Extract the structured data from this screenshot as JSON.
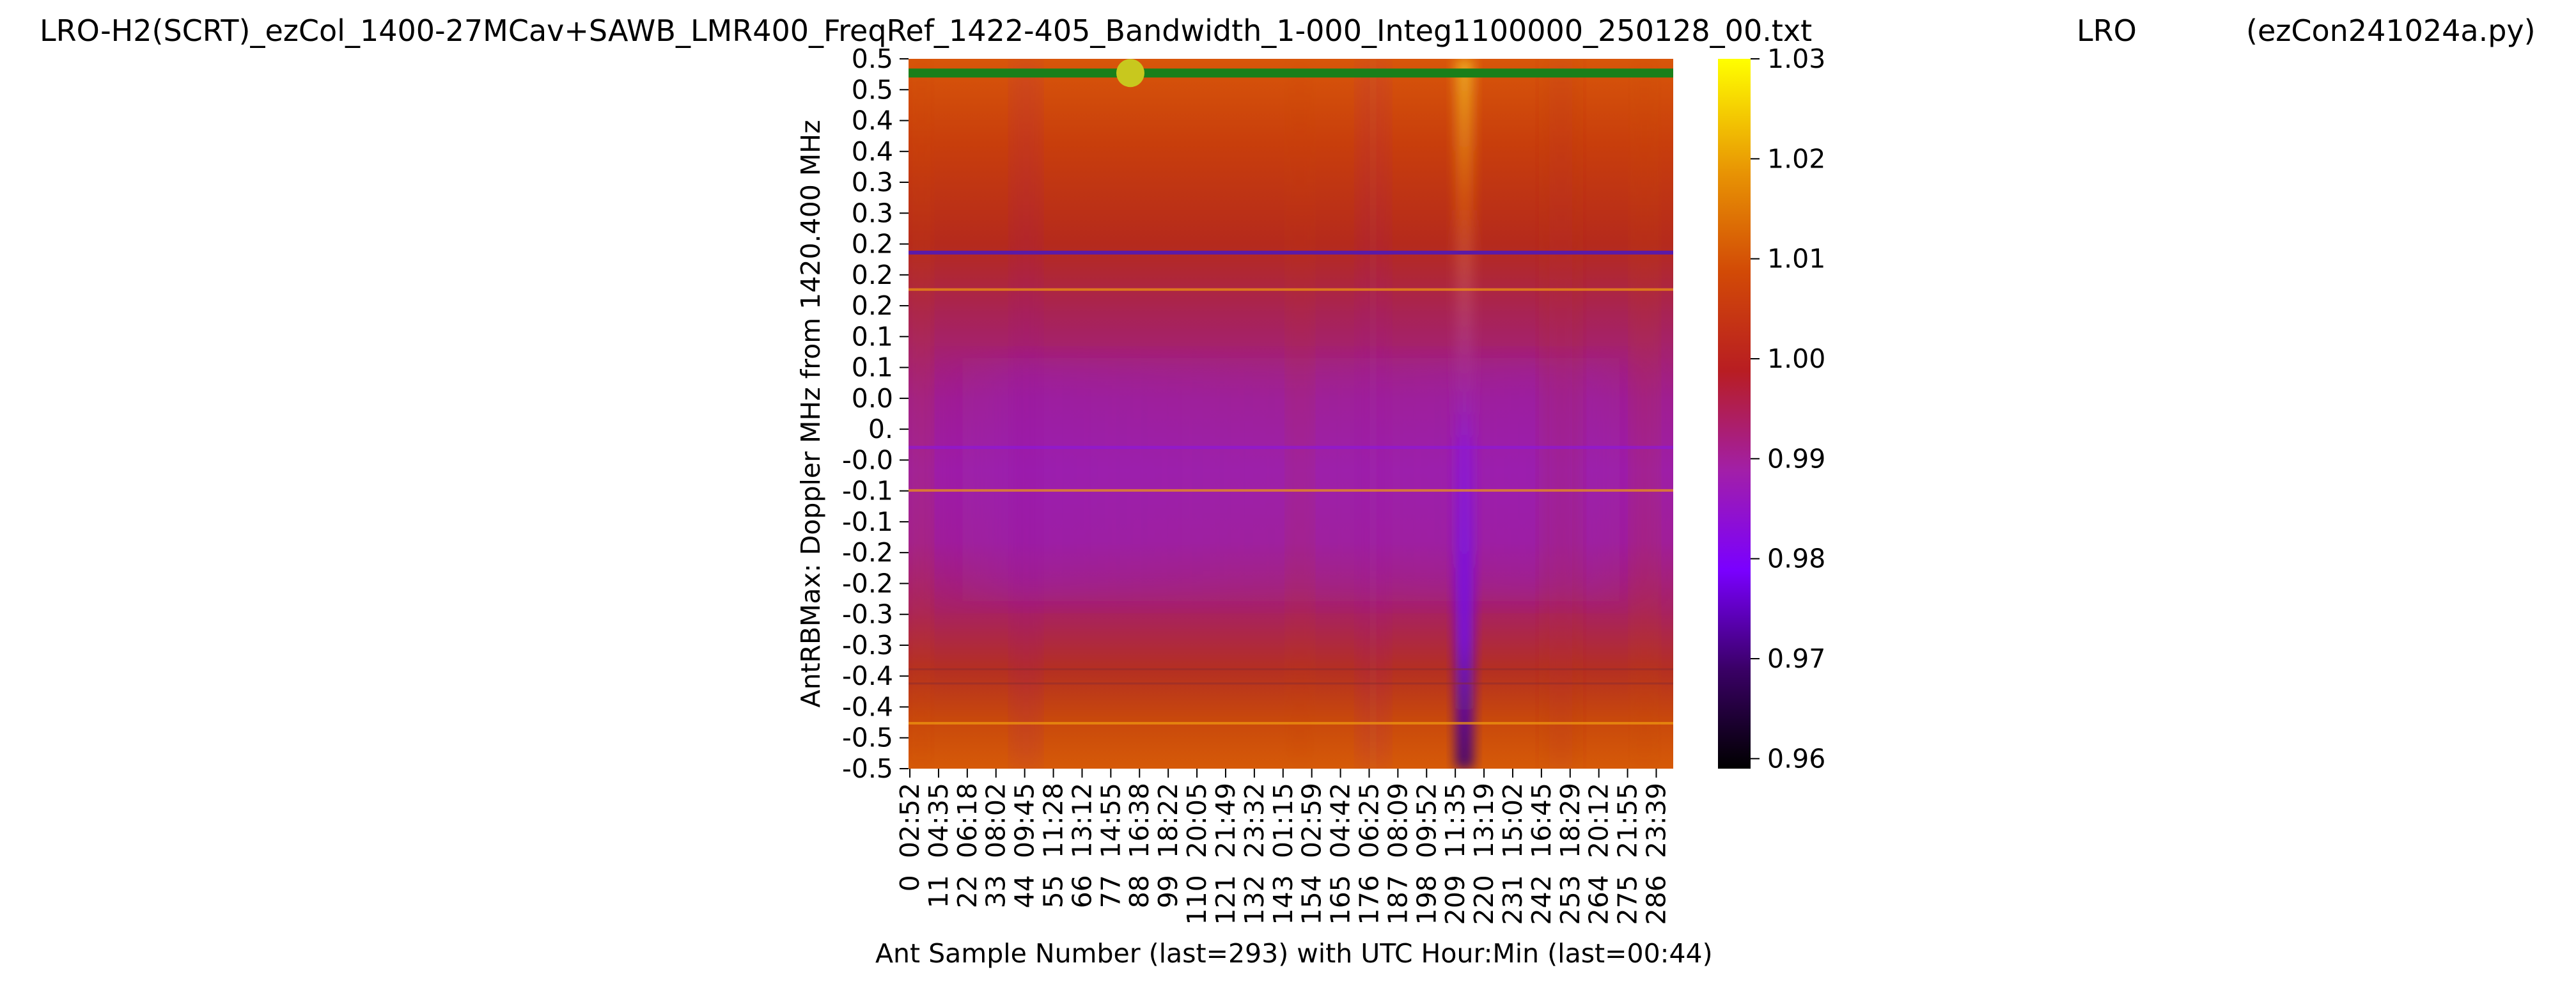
{
  "header": {
    "file_title": "LRO-H2(SCRT)_ezCol_1400-27MCav+SAWB_LMR400_FreqRef_1422-405_Bandwidth_1-000_Integ1100000_250128_00.txt",
    "observatory": "LRO",
    "program": "(ezCon241024a.py)"
  },
  "chart_data": {
    "type": "heatmap",
    "title": "LRO-H2(SCRT)_ezCol_1400-27MCav+SAWB_LMR400_FreqRef_1422-405_Bandwidth_1-000_Integ1100000_250128_00.txt",
    "xlabel": "Ant Sample Number (last=293) with UTC Hour:Min (last=00:44)",
    "ylabel": "AntRBMax:  Doppler MHz from 1420.400 MHz",
    "x_tick_labels": [
      "0  02:52",
      "11  04:35",
      "22  06:18",
      "33  08:02",
      "44  09:45",
      "55  11:28",
      "66  13:12",
      "77  14:55",
      "88  16:38",
      "99  18:22",
      "110  20:05",
      "121  21:49",
      "132  23:32",
      "143  01:15",
      "154  02:59",
      "165  04:42",
      "176  06:25",
      "187  08:09",
      "198  09:52",
      "209  11:35",
      "220  13:19",
      "231  15:02",
      "242  16:45",
      "253  18:29",
      "264  20:12",
      "275  21:55",
      "286  23:39"
    ],
    "x_tick_samples": [
      0,
      11,
      22,
      33,
      44,
      55,
      66,
      77,
      88,
      99,
      110,
      121,
      132,
      143,
      154,
      165,
      176,
      187,
      198,
      209,
      220,
      231,
      242,
      253,
      264,
      275,
      286
    ],
    "x_range": [
      0,
      293
    ],
    "y_tick_labels": [
      "0.5",
      "0.5",
      "0.4",
      "0.4",
      "0.3",
      "0.3",
      "0.2",
      "0.2",
      "0.2",
      "0.1",
      "0.1",
      "0.0",
      "0.",
      "-0.0",
      "-0.1",
      "-0.1",
      "-0.2",
      "-0.2",
      "-0.3",
      "-0.3",
      "-0.4",
      "-0.4",
      "-0.5",
      "-0.5"
    ],
    "y_range": [
      -0.5,
      0.5
    ],
    "colorbar": {
      "colormap": "gnuplot",
      "range": [
        0.959,
        1.03
      ],
      "ticks": [
        "0.96",
        "0.97",
        "0.98",
        "0.99",
        "1.00",
        "1.01",
        "1.02",
        "1.03"
      ],
      "tick_values": [
        0.96,
        0.97,
        0.98,
        0.99,
        1.0,
        1.01,
        1.02,
        1.03
      ]
    },
    "features": {
      "max_line": {
        "color": "#1a7f1a",
        "doppler_mhz": 0.48
      },
      "max_marker": {
        "color": "#c8c81e",
        "sample": 85,
        "doppler_mhz": 0.48
      },
      "dark_line_doppler_mhz": 0.227,
      "dark_line_2_doppler_mhz": -0.047,
      "bright_lines_doppler_mhz": [
        0.175,
        -0.108,
        -0.436
      ],
      "faint_lines_doppler_mhz": [
        -0.38,
        -0.36
      ],
      "vertical_feature_sample": 213
    },
    "grid": false,
    "legend": "none"
  }
}
